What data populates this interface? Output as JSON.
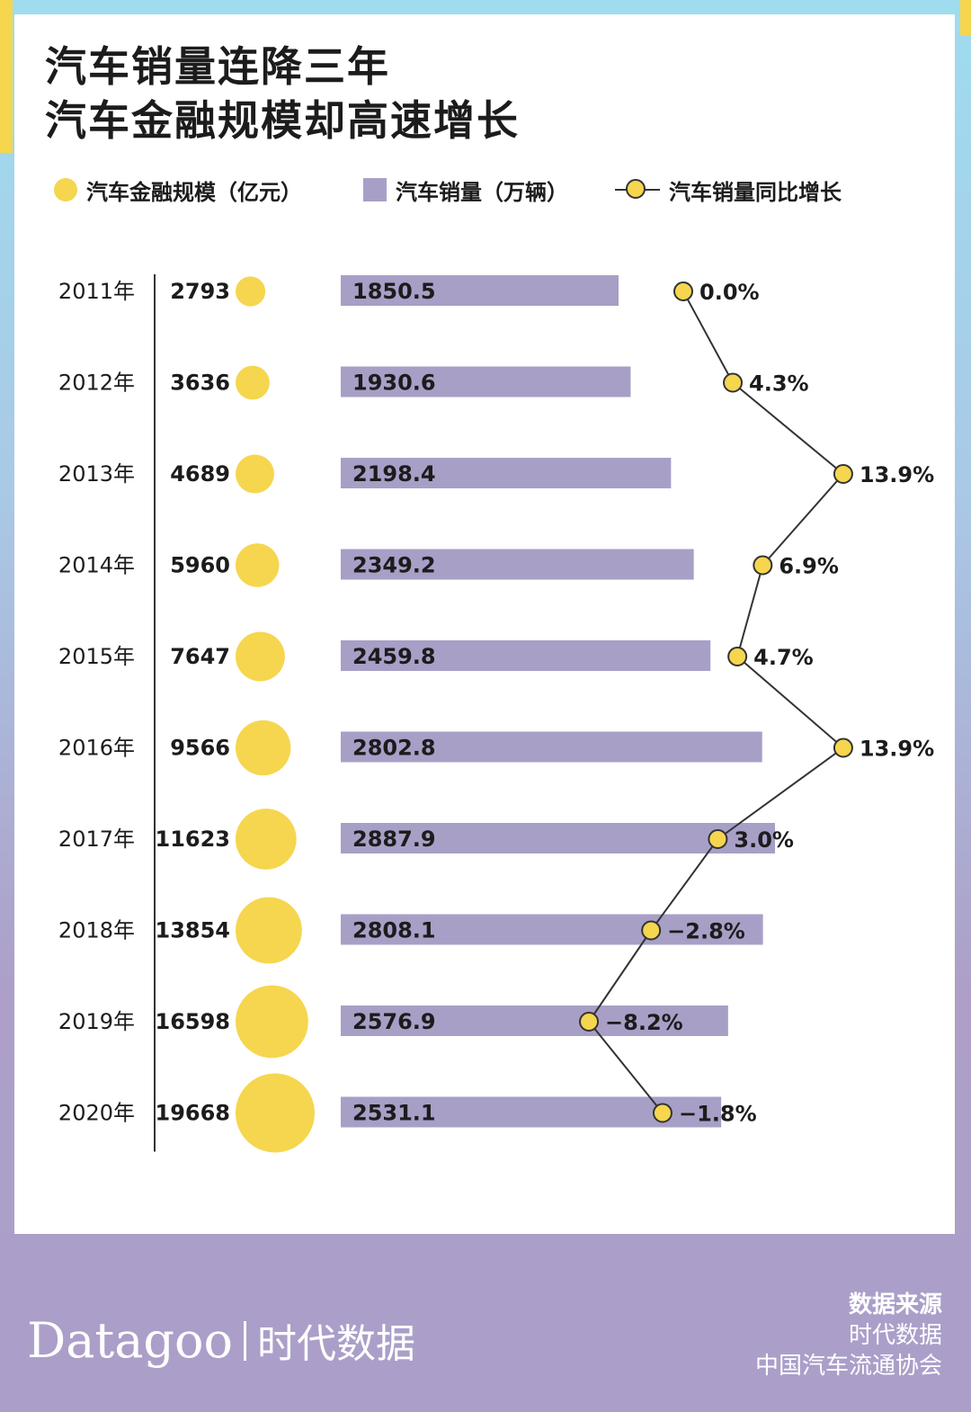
{
  "title": {
    "line1": "汽车销量连降三年",
    "line2": "汽车金融规模却高速增长"
  },
  "legend": {
    "finance": "汽车金融规模（亿元）",
    "sales": "汽车销量（万辆）",
    "growth": "汽车销量同比增长"
  },
  "colors": {
    "yellow": "#f5d64e",
    "purple": "#a89fc7",
    "line": "#333333"
  },
  "chart_data": {
    "type": "bar",
    "title": "汽车销量连降三年 汽车金融规模却高速增长",
    "categories": [
      "2011年",
      "2012年",
      "2013年",
      "2014年",
      "2015年",
      "2016年",
      "2017年",
      "2018年",
      "2019年",
      "2020年"
    ],
    "series": [
      {
        "name": "汽车金融规模（亿元）",
        "kind": "bubble",
        "values": [
          2793,
          3636,
          4689,
          5960,
          7647,
          9566,
          11623,
          13854,
          16598,
          19668
        ]
      },
      {
        "name": "汽车销量（万辆）",
        "kind": "bar",
        "values": [
          1850.5,
          1930.6,
          2198.4,
          2349.2,
          2459.8,
          2802.8,
          2887.9,
          2808.1,
          2576.9,
          2531.1
        ],
        "labels": [
          "1850.5",
          "1930.6",
          "2198.4",
          "2349.2",
          "2459.8",
          "2802.8",
          "2887.9",
          "2808.1",
          "2576.9",
          "2531.1"
        ]
      },
      {
        "name": "汽车销量同比增长",
        "kind": "line",
        "values": [
          0.0,
          4.3,
          13.9,
          6.9,
          4.7,
          13.9,
          3.0,
          -2.8,
          -8.2,
          -1.8
        ],
        "labels": [
          "0.0%",
          "4.3%",
          "13.9%",
          "6.9%",
          "4.7%",
          "13.9%",
          "3.0%",
          "−2.8%",
          "−8.2%",
          "−1.8%"
        ]
      }
    ]
  },
  "footer": {
    "brand_en": "Datagoo",
    "brand_cn": "时代数据",
    "source_title": "数据来源",
    "sources": [
      "时代数据",
      "中国汽车流通协会"
    ]
  }
}
